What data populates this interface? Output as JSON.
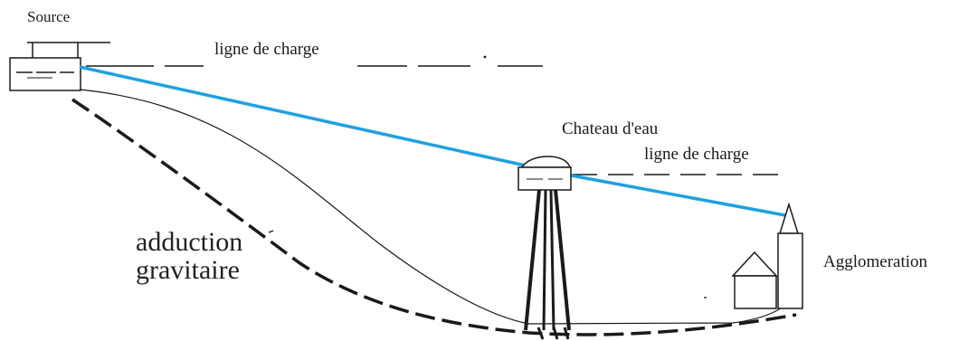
{
  "labels": {
    "source": "Source",
    "load_line_1": "ligne de charge",
    "water_tower": "Chateau d'eau",
    "load_line_2": "ligne de charge",
    "adduction_line1": "adduction",
    "adduction_line2": "gravitaire",
    "agglomeration": "Agglomeration"
  },
  "colors": {
    "piezometric_line": "#1ea1e0",
    "ink": "#1a1a1a"
  }
}
